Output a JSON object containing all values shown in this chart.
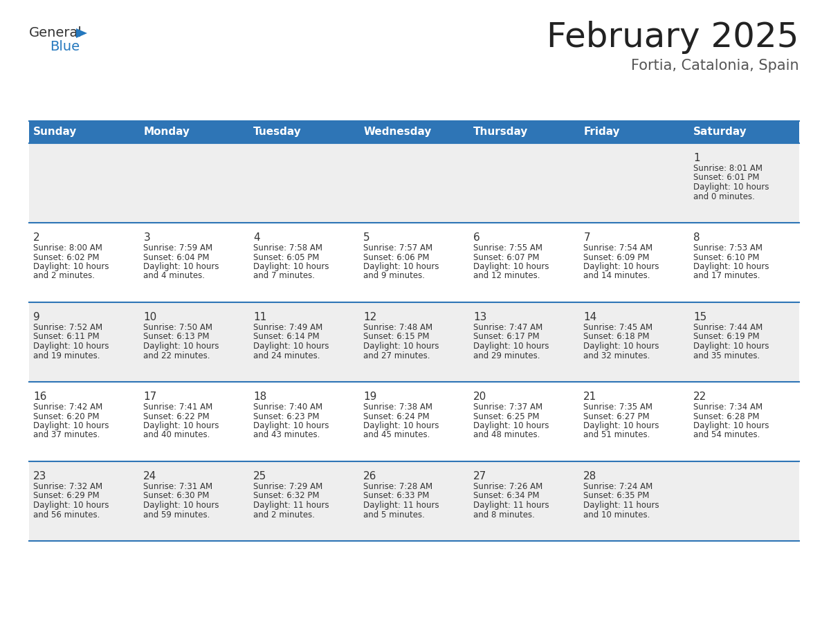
{
  "title": "February 2025",
  "subtitle": "Fortia, Catalonia, Spain",
  "header_bg": "#2E75B6",
  "header_text_color": "#FFFFFF",
  "cell_bg_odd": "#EEEEEE",
  "cell_bg_even": "#FFFFFF",
  "border_color": "#2E75B6",
  "text_color": "#333333",
  "days_of_week": [
    "Sunday",
    "Monday",
    "Tuesday",
    "Wednesday",
    "Thursday",
    "Friday",
    "Saturday"
  ],
  "calendar_data": [
    [
      null,
      null,
      null,
      null,
      null,
      null,
      {
        "day": "1",
        "lines": [
          "Sunrise: 8:01 AM",
          "Sunset: 6:01 PM",
          "Daylight: 10 hours",
          "and 0 minutes."
        ]
      }
    ],
    [
      {
        "day": "2",
        "lines": [
          "Sunrise: 8:00 AM",
          "Sunset: 6:02 PM",
          "Daylight: 10 hours",
          "and 2 minutes."
        ]
      },
      {
        "day": "3",
        "lines": [
          "Sunrise: 7:59 AM",
          "Sunset: 6:04 PM",
          "Daylight: 10 hours",
          "and 4 minutes."
        ]
      },
      {
        "day": "4",
        "lines": [
          "Sunrise: 7:58 AM",
          "Sunset: 6:05 PM",
          "Daylight: 10 hours",
          "and 7 minutes."
        ]
      },
      {
        "day": "5",
        "lines": [
          "Sunrise: 7:57 AM",
          "Sunset: 6:06 PM",
          "Daylight: 10 hours",
          "and 9 minutes."
        ]
      },
      {
        "day": "6",
        "lines": [
          "Sunrise: 7:55 AM",
          "Sunset: 6:07 PM",
          "Daylight: 10 hours",
          "and 12 minutes."
        ]
      },
      {
        "day": "7",
        "lines": [
          "Sunrise: 7:54 AM",
          "Sunset: 6:09 PM",
          "Daylight: 10 hours",
          "and 14 minutes."
        ]
      },
      {
        "day": "8",
        "lines": [
          "Sunrise: 7:53 AM",
          "Sunset: 6:10 PM",
          "Daylight: 10 hours",
          "and 17 minutes."
        ]
      }
    ],
    [
      {
        "day": "9",
        "lines": [
          "Sunrise: 7:52 AM",
          "Sunset: 6:11 PM",
          "Daylight: 10 hours",
          "and 19 minutes."
        ]
      },
      {
        "day": "10",
        "lines": [
          "Sunrise: 7:50 AM",
          "Sunset: 6:13 PM",
          "Daylight: 10 hours",
          "and 22 minutes."
        ]
      },
      {
        "day": "11",
        "lines": [
          "Sunrise: 7:49 AM",
          "Sunset: 6:14 PM",
          "Daylight: 10 hours",
          "and 24 minutes."
        ]
      },
      {
        "day": "12",
        "lines": [
          "Sunrise: 7:48 AM",
          "Sunset: 6:15 PM",
          "Daylight: 10 hours",
          "and 27 minutes."
        ]
      },
      {
        "day": "13",
        "lines": [
          "Sunrise: 7:47 AM",
          "Sunset: 6:17 PM",
          "Daylight: 10 hours",
          "and 29 minutes."
        ]
      },
      {
        "day": "14",
        "lines": [
          "Sunrise: 7:45 AM",
          "Sunset: 6:18 PM",
          "Daylight: 10 hours",
          "and 32 minutes."
        ]
      },
      {
        "day": "15",
        "lines": [
          "Sunrise: 7:44 AM",
          "Sunset: 6:19 PM",
          "Daylight: 10 hours",
          "and 35 minutes."
        ]
      }
    ],
    [
      {
        "day": "16",
        "lines": [
          "Sunrise: 7:42 AM",
          "Sunset: 6:20 PM",
          "Daylight: 10 hours",
          "and 37 minutes."
        ]
      },
      {
        "day": "17",
        "lines": [
          "Sunrise: 7:41 AM",
          "Sunset: 6:22 PM",
          "Daylight: 10 hours",
          "and 40 minutes."
        ]
      },
      {
        "day": "18",
        "lines": [
          "Sunrise: 7:40 AM",
          "Sunset: 6:23 PM",
          "Daylight: 10 hours",
          "and 43 minutes."
        ]
      },
      {
        "day": "19",
        "lines": [
          "Sunrise: 7:38 AM",
          "Sunset: 6:24 PM",
          "Daylight: 10 hours",
          "and 45 minutes."
        ]
      },
      {
        "day": "20",
        "lines": [
          "Sunrise: 7:37 AM",
          "Sunset: 6:25 PM",
          "Daylight: 10 hours",
          "and 48 minutes."
        ]
      },
      {
        "day": "21",
        "lines": [
          "Sunrise: 7:35 AM",
          "Sunset: 6:27 PM",
          "Daylight: 10 hours",
          "and 51 minutes."
        ]
      },
      {
        "day": "22",
        "lines": [
          "Sunrise: 7:34 AM",
          "Sunset: 6:28 PM",
          "Daylight: 10 hours",
          "and 54 minutes."
        ]
      }
    ],
    [
      {
        "day": "23",
        "lines": [
          "Sunrise: 7:32 AM",
          "Sunset: 6:29 PM",
          "Daylight: 10 hours",
          "and 56 minutes."
        ]
      },
      {
        "day": "24",
        "lines": [
          "Sunrise: 7:31 AM",
          "Sunset: 6:30 PM",
          "Daylight: 10 hours",
          "and 59 minutes."
        ]
      },
      {
        "day": "25",
        "lines": [
          "Sunrise: 7:29 AM",
          "Sunset: 6:32 PM",
          "Daylight: 11 hours",
          "and 2 minutes."
        ]
      },
      {
        "day": "26",
        "lines": [
          "Sunrise: 7:28 AM",
          "Sunset: 6:33 PM",
          "Daylight: 11 hours",
          "and 5 minutes."
        ]
      },
      {
        "day": "27",
        "lines": [
          "Sunrise: 7:26 AM",
          "Sunset: 6:34 PM",
          "Daylight: 11 hours",
          "and 8 minutes."
        ]
      },
      {
        "day": "28",
        "lines": [
          "Sunrise: 7:24 AM",
          "Sunset: 6:35 PM",
          "Daylight: 11 hours",
          "and 10 minutes."
        ]
      },
      null
    ]
  ],
  "logo_general_color": "#333333",
  "logo_blue_color": "#2478BE",
  "logo_triangle_color": "#2478BE",
  "title_fontsize": 36,
  "subtitle_fontsize": 15,
  "header_fontsize": 11,
  "day_num_fontsize": 11,
  "cell_text_fontsize": 8.5
}
